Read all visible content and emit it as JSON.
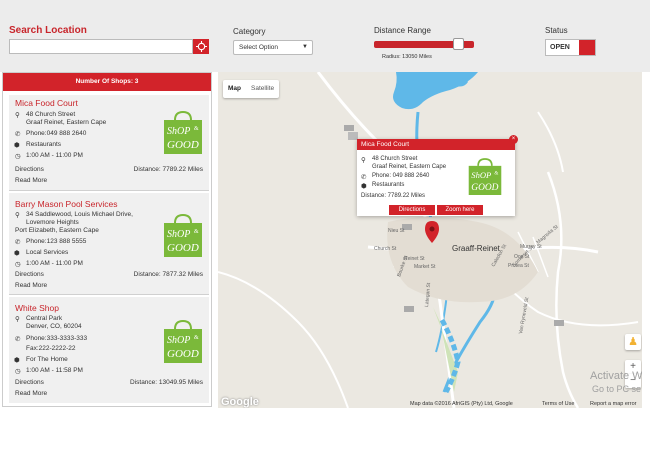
{
  "search": {
    "title": "Search Location",
    "value": "",
    "placeholder": ""
  },
  "category": {
    "label": "Category",
    "selected": "Select Option"
  },
  "distance": {
    "label": "Distance Range",
    "radius_text": "Radius: 13050 Miles",
    "fill_percent": 89
  },
  "status": {
    "label": "Status",
    "value": "OPEN"
  },
  "panel": {
    "header": "Number Of Shops: 3"
  },
  "logo": {
    "line1": "ShOP",
    "amp": "&",
    "line2": "GOOD"
  },
  "shops": [
    {
      "name": "Mica Food Court",
      "address1": "48 Church Street",
      "address2": "Graaf Reinet, Eastern Cape",
      "address3": "",
      "phone": "Phone:049 888 2640",
      "fax": "",
      "category": "Restaurants",
      "hours": "1:00 AM - 11:00 PM",
      "directions": "Directions",
      "distance": "Distance: 7789.22 Miles",
      "read_more": "Read More"
    },
    {
      "name": "Barry Mason Pool Services",
      "address1": "34 Saddlewood, Louis Michael Drive,",
      "address2": "Lovemore Heights",
      "address3": "Port Elizabeth, Eastern Cape",
      "phone": "Phone:123 888 5555",
      "fax": "",
      "category": "Local Services",
      "hours": "1:00 AM - 11:00 PM",
      "directions": "Directions",
      "distance": "Distance: 7877.32 Miles",
      "read_more": "Read More"
    },
    {
      "name": "White Shop",
      "address1": "Central Park",
      "address2": "Denver, CO, 60204",
      "address3": "",
      "phone": "Phone:333-3333-333",
      "fax": "Fax:222-2222-22",
      "category": "For The Home",
      "hours": "1:00 AM - 11:58 PM",
      "directions": "Directions",
      "distance": "Distance: 13049.95 Miles",
      "read_more": "Read More"
    }
  ],
  "map": {
    "type_map": "Map",
    "type_satellite": "Satellite",
    "town_label": "Graaff-Reinet",
    "roads": [
      "Church St",
      "Bourke St",
      "Market St",
      "Somerset St",
      "Caledon St",
      "Murray St",
      "Oos St",
      "Protea St",
      "Magnolia St",
      "Van Ryneveld St",
      "Reinet St",
      "Lategan St",
      "Nieu St"
    ],
    "google": "Google",
    "attribution": "Map data ©2016 AfriGIS (Pty) Ltd, Google",
    "terms": "Terms of Use",
    "report": "Report a map error",
    "zoom_in": "+",
    "zoom_out": "−"
  },
  "popup": {
    "title": "Mica Food Court",
    "address1": "48 Church Street",
    "address2": "Graaf Reinet, Eastern Cape",
    "phone": "Phone: 049 888 2640",
    "category": "Restaurants",
    "distance": "Distance: 7789.22 Miles",
    "directions": "Directions",
    "zoom": "Zoom here",
    "close": "×"
  },
  "watermark": {
    "line1": "Activate W",
    "line2": "Go to PC se"
  }
}
